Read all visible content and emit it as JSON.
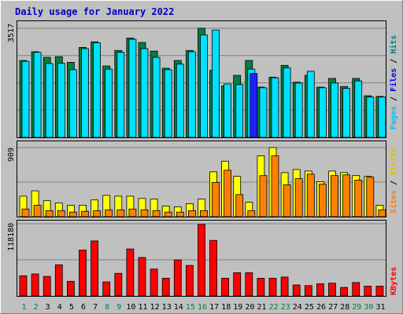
{
  "chart_data": {
    "type": "bar",
    "title": "Daily usage for January 2022",
    "categories": [
      "1",
      "2",
      "3",
      "4",
      "5",
      "6",
      "7",
      "8",
      "9",
      "10",
      "11",
      "12",
      "13",
      "14",
      "15",
      "16",
      "17",
      "18",
      "19",
      "20",
      "21",
      "22",
      "23",
      "24",
      "25",
      "26",
      "27",
      "28",
      "29",
      "30",
      "31"
    ],
    "weekend_days": [
      "1",
      "2",
      "8",
      "9",
      "15",
      "16",
      "22",
      "23",
      "29",
      "30"
    ],
    "panels": [
      {
        "name": "hits-files-pages",
        "ytick_label": "3517",
        "ymax": 3517,
        "legend": [
          "Pages",
          "Files",
          "Hits"
        ],
        "series": [
          {
            "name": "Hits",
            "color": "#008040",
            "values": [
              2480,
              2760,
              2580,
              2600,
              2420,
              2900,
              3080,
              2300,
              2800,
              3200,
              3060,
              2780,
              2230,
              2480,
              2800,
              3517,
              2160,
              1660,
              2000,
              2480,
              1620,
              1940,
              2320,
              1780,
              2000,
              1620,
              1900,
              1640,
              1900,
              1340,
              1320
            ]
          },
          {
            "name": "Files",
            "color": "#00e0ff",
            "values": [
              2450,
              2740,
              2380,
              2390,
              2180,
              2860,
              3050,
              2200,
              2740,
              3160,
              2860,
              2580,
              2180,
              2360,
              2760,
              3300,
              3460,
              1720,
              1700,
              2200,
              1600,
              1920,
              2240,
              1750,
              2130,
              1600,
              1750,
              1580,
              1820,
              1300,
              1300
            ]
          },
          {
            "name": "Pages",
            "color": "#2020ff",
            "values": [
              0,
              0,
              0,
              0,
              0,
              0,
              0,
              0,
              0,
              0,
              0,
              0,
              0,
              0,
              0,
              0,
              0,
              0,
              0,
              2060,
              0,
              0,
              0,
              0,
              0,
              0,
              0,
              0,
              0,
              0,
              0
            ]
          }
        ]
      },
      {
        "name": "visits-sites",
        "ytick_label": "909",
        "ymax": 909,
        "legend": [
          "Sites",
          "Visits"
        ],
        "series": [
          {
            "name": "Visits",
            "color": "#ffff00",
            "values": [
              270,
              340,
              210,
              180,
              150,
              150,
              220,
              280,
              270,
              270,
              240,
              230,
              140,
              130,
              170,
              230,
              590,
              730,
              530,
              190,
              800,
              909,
              580,
              620,
              600,
              460,
              600,
              580,
              540,
              530,
              150
            ]
          },
          {
            "name": "Sites",
            "color": "#ff8000",
            "values": [
              100,
              150,
              80,
              80,
              60,
              70,
              80,
              90,
              90,
              100,
              90,
              80,
              60,
              60,
              80,
              80,
              450,
              610,
              290,
              80,
              540,
              800,
              420,
              500,
              560,
              430,
              540,
              550,
              480,
              520,
              90
            ]
          }
        ]
      },
      {
        "name": "kbytes",
        "ytick_label": "118180",
        "ymax": 118180,
        "legend": [
          "KBytes"
        ],
        "series": [
          {
            "name": "KBytes",
            "color": "#ff0000",
            "values": [
              33000,
              36000,
              32000,
              51000,
              24000,
              75000,
              90000,
              23000,
              37000,
              77000,
              63000,
              44000,
              29000,
              59000,
              50000,
              117000,
              91000,
              29000,
              38000,
              38000,
              29000,
              29000,
              31000,
              18000,
              17000,
              20000,
              21000,
              14000,
              22000,
              16000,
              16000
            ]
          }
        ]
      }
    ]
  }
}
